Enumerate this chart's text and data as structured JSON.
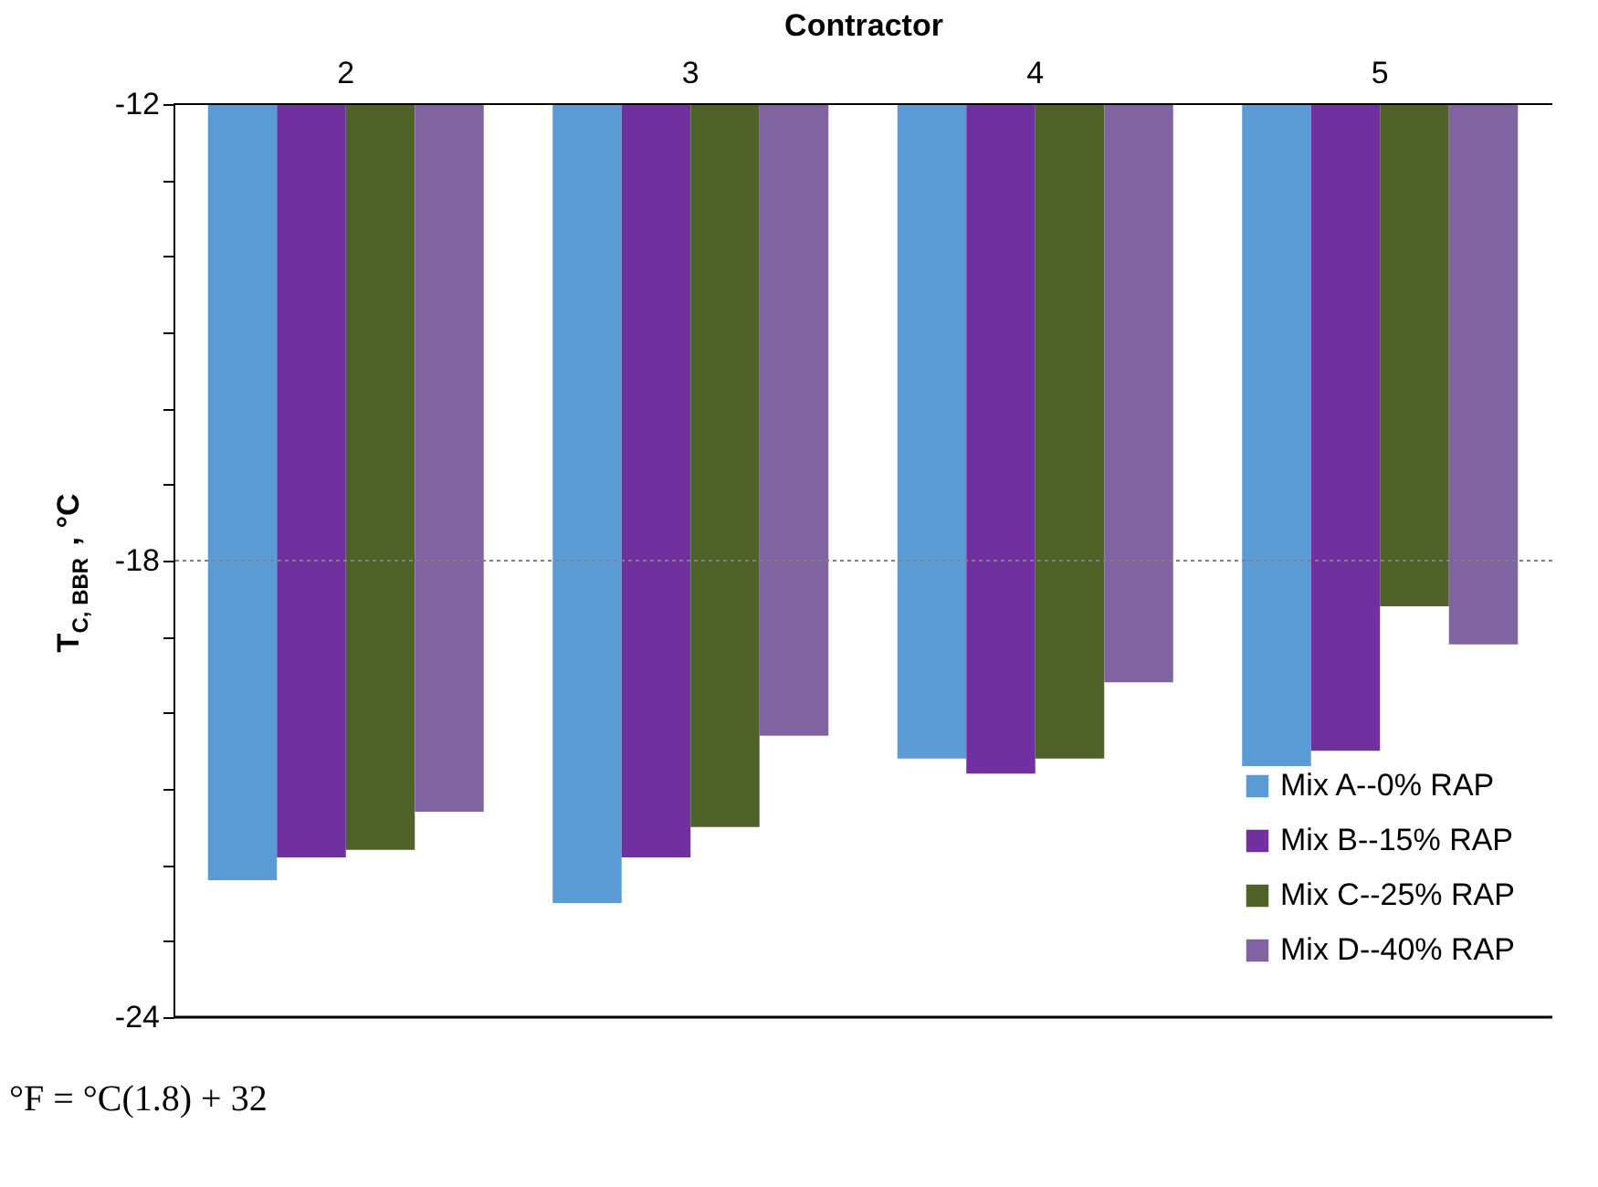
{
  "chart_data": {
    "type": "bar",
    "xlabel": "Contractor",
    "ylabel": "T$_{C, BBR}$, °C",
    "categories": [
      "2",
      "3",
      "4",
      "5"
    ],
    "series": [
      {
        "name": "Mix A--0% RAP",
        "color": "#5b9bd5",
        "values": [
          -22.2,
          -22.5,
          -20.6,
          -20.7
        ]
      },
      {
        "name": "Mix B--15% RAP",
        "color": "#7030a0",
        "values": [
          -21.9,
          -21.9,
          -20.8,
          -20.5
        ]
      },
      {
        "name": "Mix C--25% RAP",
        "color": "#4f6228",
        "values": [
          -21.8,
          -21.5,
          -20.6,
          -18.6
        ]
      },
      {
        "name": "Mix D--40% RAP",
        "color": "#8064a2",
        "values": [
          -21.3,
          -20.3,
          -19.6,
          -19.1
        ]
      }
    ],
    "ylim": [
      -24,
      -12
    ],
    "yticks": [
      -24,
      {
        "value": -23,
        "label": null
      },
      {
        "value": -22,
        "label": null
      },
      {
        "value": -21,
        "label": null
      },
      {
        "value": -20,
        "label": null
      },
      {
        "value": -19,
        "label": null
      },
      -18,
      {
        "value": -17,
        "label": null
      },
      {
        "value": -16,
        "label": null
      },
      {
        "value": -15,
        "label": null
      },
      {
        "value": -14,
        "label": null
      },
      {
        "value": -13,
        "label": null
      },
      -12
    ],
    "ref_lines": [
      {
        "axis": "y",
        "value": -18,
        "color": "#808080",
        "line_style": "dotted"
      }
    ],
    "legend": "bottom right",
    "annotations": [
      "°F = °C(1.8) + 32"
    ]
  }
}
